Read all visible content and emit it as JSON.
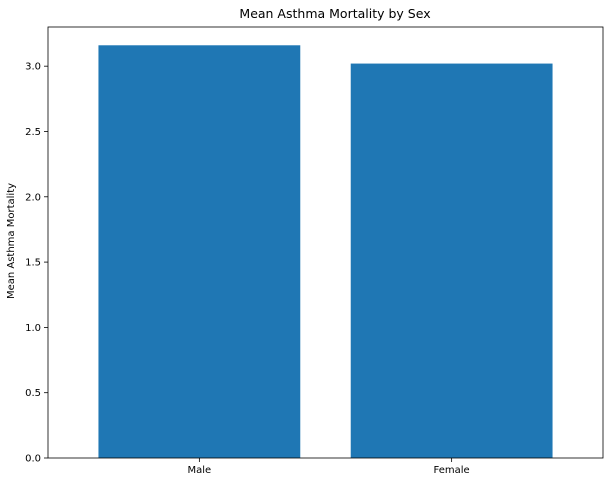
{
  "chart_data": {
    "type": "bar",
    "title": "Mean Asthma Mortality by Sex",
    "xlabel": "",
    "ylabel": "Mean Asthma Mortality",
    "categories": [
      "Male",
      "Female"
    ],
    "values": [
      3.16,
      3.02
    ],
    "ylim": [
      0,
      3.3
    ],
    "yticks": [
      0.0,
      0.5,
      1.0,
      1.5,
      2.0,
      2.5,
      3.0
    ],
    "ytick_labels": [
      "0.0",
      "0.5",
      "1.0",
      "1.5",
      "2.0",
      "2.5",
      "3.0"
    ],
    "bar_color": "#1f77b4",
    "grid": false,
    "legend": false
  }
}
